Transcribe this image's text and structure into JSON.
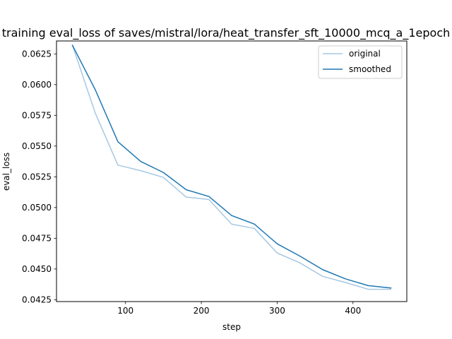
{
  "chart_data": {
    "type": "line",
    "title": "training eval_loss of saves/mistral/lora/heat_transfer_sft_10000_mcq_a_1epoch",
    "xlabel": "step",
    "ylabel": "eval_loss",
    "xlim": [
      9,
      471
    ],
    "ylim": [
      0.04235,
      0.06355
    ],
    "xticks": [
      100,
      200,
      300,
      400
    ],
    "xtick_labels": [
      "100",
      "200",
      "300",
      "400"
    ],
    "yticks": [
      0.0425,
      0.045,
      0.0475,
      0.05,
      0.0525,
      0.055,
      0.0575,
      0.06,
      0.0625
    ],
    "ytick_labels": [
      "0.0425",
      "0.0450",
      "0.0475",
      "0.0500",
      "0.0525",
      "0.0550",
      "0.0575",
      "0.0600",
      "0.0625"
    ],
    "grid": false,
    "legend_position": "top-right",
    "x": [
      30,
      60,
      90,
      120,
      150,
      180,
      210,
      240,
      270,
      300,
      330,
      360,
      390,
      420,
      450
    ],
    "series": [
      {
        "name": "original",
        "color": "#a6c8e3",
        "values": [
          0.0632,
          0.0577,
          0.05345,
          0.053,
          0.05245,
          0.05085,
          0.05065,
          0.04865,
          0.0483,
          0.0463,
          0.0455,
          0.0444,
          0.0439,
          0.04335,
          0.04335
        ]
      },
      {
        "name": "smoothed",
        "color": "#1f77b4",
        "values": [
          0.0632,
          0.0596,
          0.05535,
          0.05375,
          0.05285,
          0.05145,
          0.0509,
          0.04935,
          0.04865,
          0.04705,
          0.04605,
          0.04495,
          0.0442,
          0.04365,
          0.04345
        ]
      }
    ]
  }
}
